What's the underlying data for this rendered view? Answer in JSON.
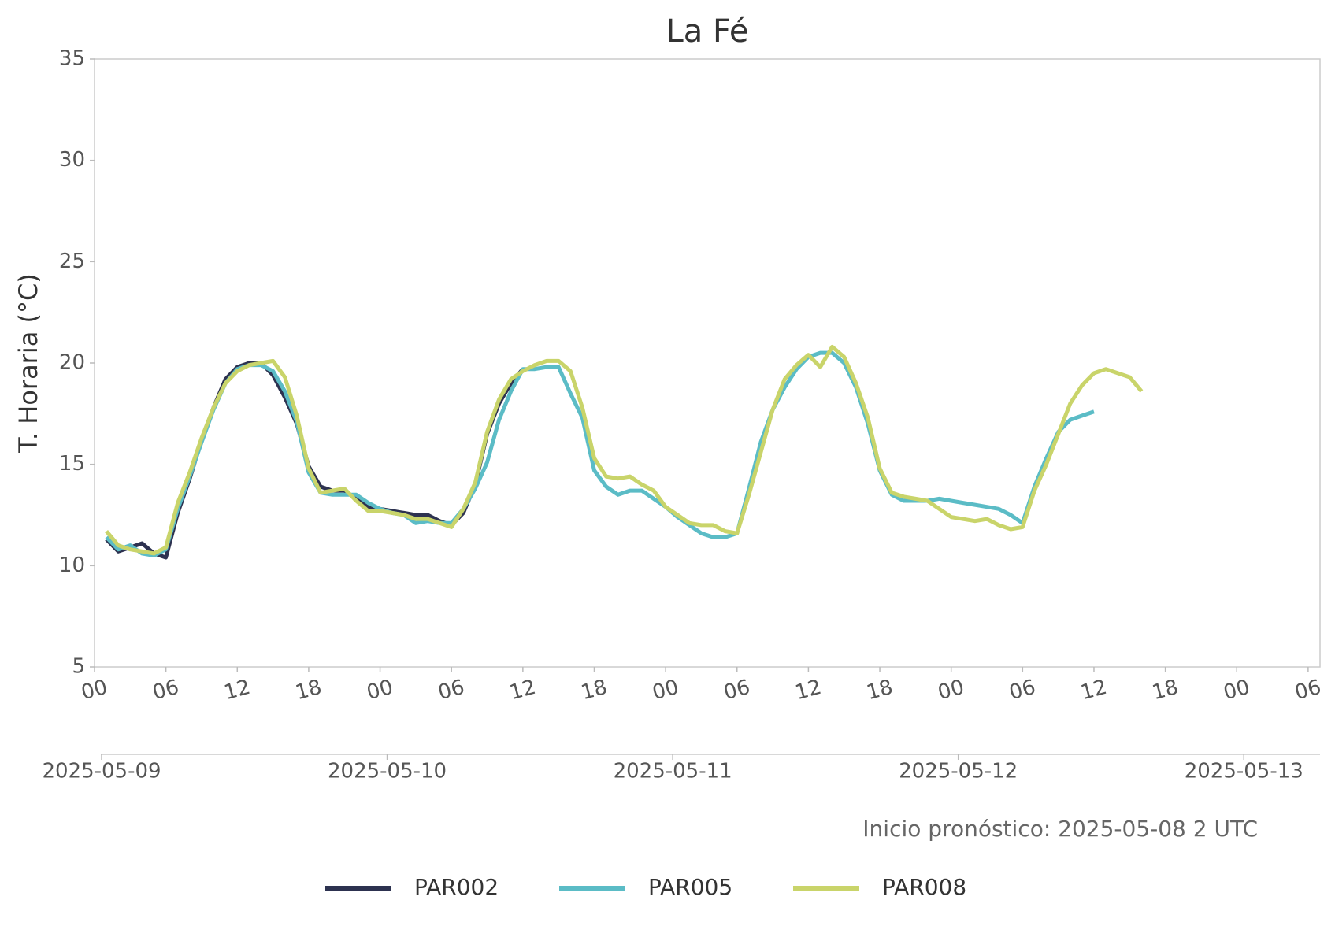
{
  "chart_data": {
    "type": "line",
    "title": "La Fé",
    "y_label": "T. Horaria (°C)",
    "annotation": "Inicio pronóstico: 2025-05-08 2 UTC",
    "x": [
      "2025-05-09T01:00",
      "2025-05-09T02:00",
      "2025-05-09T03:00",
      "2025-05-09T04:00",
      "2025-05-09T05:00",
      "2025-05-09T06:00",
      "2025-05-09T07:00",
      "2025-05-09T08:00",
      "2025-05-09T09:00",
      "2025-05-09T10:00",
      "2025-05-09T11:00",
      "2025-05-09T12:00",
      "2025-05-09T13:00",
      "2025-05-09T14:00",
      "2025-05-09T15:00",
      "2025-05-09T16:00",
      "2025-05-09T17:00",
      "2025-05-09T18:00",
      "2025-05-09T19:00",
      "2025-05-09T20:00",
      "2025-05-09T21:00",
      "2025-05-09T22:00",
      "2025-05-09T23:00",
      "2025-05-10T00:00",
      "2025-05-10T01:00",
      "2025-05-10T02:00",
      "2025-05-10T03:00",
      "2025-05-10T04:00",
      "2025-05-10T05:00",
      "2025-05-10T06:00",
      "2025-05-10T07:00",
      "2025-05-10T08:00",
      "2025-05-10T09:00",
      "2025-05-10T10:00",
      "2025-05-10T11:00",
      "2025-05-10T12:00",
      "2025-05-10T13:00",
      "2025-05-10T14:00",
      "2025-05-10T15:00",
      "2025-05-10T16:00",
      "2025-05-10T17:00",
      "2025-05-10T18:00",
      "2025-05-10T19:00",
      "2025-05-10T20:00",
      "2025-05-10T21:00",
      "2025-05-10T22:00",
      "2025-05-10T23:00",
      "2025-05-11T00:00",
      "2025-05-11T01:00",
      "2025-05-11T02:00",
      "2025-05-11T03:00",
      "2025-05-11T04:00",
      "2025-05-11T05:00",
      "2025-05-11T06:00",
      "2025-05-11T07:00",
      "2025-05-11T08:00",
      "2025-05-11T09:00",
      "2025-05-11T10:00",
      "2025-05-11T11:00",
      "2025-05-11T12:00",
      "2025-05-11T13:00",
      "2025-05-11T14:00",
      "2025-05-11T15:00",
      "2025-05-11T16:00",
      "2025-05-11T17:00",
      "2025-05-11T18:00",
      "2025-05-11T19:00",
      "2025-05-11T20:00",
      "2025-05-11T21:00",
      "2025-05-11T22:00",
      "2025-05-11T23:00",
      "2025-05-12T00:00",
      "2025-05-12T01:00",
      "2025-05-12T02:00",
      "2025-05-12T03:00",
      "2025-05-12T04:00",
      "2025-05-12T05:00",
      "2025-05-12T06:00",
      "2025-05-12T07:00",
      "2025-05-12T08:00",
      "2025-05-12T09:00",
      "2025-05-12T10:00",
      "2025-05-12T11:00",
      "2025-05-12T12:00",
      "2025-05-12T13:00",
      "2025-05-12T14:00",
      "2025-05-12T15:00",
      "2025-05-12T16:00"
    ],
    "series": [
      {
        "name": "PAR002",
        "color": "#2d3250",
        "values": [
          11.3,
          10.7,
          10.9,
          11.1,
          10.6,
          10.4,
          12.6,
          14.3,
          16.2,
          17.8,
          19.2,
          19.8,
          20.0,
          20.0,
          19.4,
          18.3,
          17.0,
          14.9,
          13.9,
          13.7,
          13.7,
          13.3,
          12.9,
          12.8,
          12.7,
          12.6,
          12.5,
          12.5,
          12.2,
          12.0,
          12.6,
          14.0,
          16.5,
          18.0,
          19.0,
          19.7,
          null,
          null,
          null,
          null,
          null,
          null,
          null,
          null,
          null,
          null,
          null,
          null,
          null,
          null,
          null,
          null,
          null,
          null,
          null,
          null,
          null,
          null,
          null,
          null,
          null,
          null,
          null,
          null,
          null,
          null,
          null,
          null,
          null,
          null,
          null,
          null,
          null,
          null,
          null,
          null,
          null,
          null,
          null,
          null,
          null,
          null,
          null,
          null,
          null,
          null,
          null,
          null
        ]
      },
      {
        "name": "PAR005",
        "color": "#5bbcc6",
        "values": [
          11.4,
          10.8,
          11.0,
          10.6,
          10.5,
          10.8,
          12.8,
          14.4,
          16.1,
          17.7,
          19.0,
          19.7,
          19.9,
          19.9,
          19.6,
          18.6,
          17.1,
          14.6,
          13.6,
          13.5,
          13.5,
          13.5,
          13.1,
          12.8,
          12.6,
          12.5,
          12.1,
          12.2,
          12.1,
          12.1,
          12.8,
          13.8,
          15.1,
          17.2,
          18.6,
          19.7,
          19.7,
          19.8,
          19.8,
          18.5,
          17.3,
          14.7,
          13.9,
          13.5,
          13.7,
          13.7,
          13.3,
          12.9,
          12.4,
          12.0,
          11.6,
          11.4,
          11.4,
          11.6,
          13.8,
          16.1,
          17.7,
          18.8,
          19.7,
          20.3,
          20.5,
          20.5,
          20.0,
          18.8,
          17.0,
          14.7,
          13.5,
          13.2,
          13.2,
          13.2,
          13.3,
          13.2,
          13.1,
          13.0,
          12.9,
          12.8,
          12.5,
          12.1,
          13.9,
          15.3,
          16.6,
          17.2,
          17.4,
          17.6,
          null,
          null,
          null,
          null
        ]
      },
      {
        "name": "PAR008",
        "color": "#c9d46a",
        "values": [
          11.7,
          11.0,
          10.8,
          10.7,
          10.6,
          10.9,
          13.1,
          14.6,
          16.3,
          17.8,
          19.0,
          19.6,
          19.9,
          20.0,
          20.1,
          19.3,
          17.4,
          14.8,
          13.6,
          13.7,
          13.8,
          13.2,
          12.7,
          12.7,
          12.6,
          12.5,
          12.3,
          12.3,
          12.1,
          11.9,
          12.8,
          14.1,
          16.6,
          18.2,
          19.2,
          19.6,
          19.9,
          20.1,
          20.1,
          19.6,
          17.8,
          15.3,
          14.4,
          14.3,
          14.4,
          14.0,
          13.7,
          12.9,
          12.5,
          12.1,
          12.0,
          12.0,
          11.7,
          11.6,
          13.5,
          15.6,
          17.7,
          19.2,
          19.9,
          20.4,
          19.8,
          20.8,
          20.3,
          19.0,
          17.3,
          14.8,
          13.6,
          13.4,
          13.3,
          13.2,
          12.8,
          12.4,
          12.3,
          12.2,
          12.3,
          12.0,
          11.8,
          11.9,
          13.7,
          15.0,
          16.5,
          18.0,
          18.9,
          19.5,
          19.7,
          19.5,
          19.3,
          18.6
        ]
      }
    ],
    "xlim": [
      "2025-05-09T00:00",
      "2025-05-13T07:00"
    ],
    "xticks": [
      {
        "value": "2025-05-09T00:00",
        "label": "00"
      },
      {
        "value": "2025-05-09T06:00",
        "label": "06"
      },
      {
        "value": "2025-05-09T12:00",
        "label": "12"
      },
      {
        "value": "2025-05-09T18:00",
        "label": "18"
      },
      {
        "value": "2025-05-10T00:00",
        "label": "00"
      },
      {
        "value": "2025-05-10T06:00",
        "label": "06"
      },
      {
        "value": "2025-05-10T12:00",
        "label": "12"
      },
      {
        "value": "2025-05-10T18:00",
        "label": "18"
      },
      {
        "value": "2025-05-11T00:00",
        "label": "00"
      },
      {
        "value": "2025-05-11T06:00",
        "label": "06"
      },
      {
        "value": "2025-05-11T12:00",
        "label": "12"
      },
      {
        "value": "2025-05-11T18:00",
        "label": "18"
      },
      {
        "value": "2025-05-12T00:00",
        "label": "00"
      },
      {
        "value": "2025-05-12T06:00",
        "label": "06"
      },
      {
        "value": "2025-05-12T12:00",
        "label": "12"
      },
      {
        "value": "2025-05-12T18:00",
        "label": "18"
      },
      {
        "value": "2025-05-13T00:00",
        "label": "00"
      },
      {
        "value": "2025-05-13T06:00",
        "label": "06"
      }
    ],
    "date_ticks": [
      {
        "value": "2025-05-09T00:00",
        "label": "2025-05-09"
      },
      {
        "value": "2025-05-10T00:00",
        "label": "2025-05-10"
      },
      {
        "value": "2025-05-11T00:00",
        "label": "2025-05-11"
      },
      {
        "value": "2025-05-12T00:00",
        "label": "2025-05-12"
      },
      {
        "value": "2025-05-13T00:00",
        "label": "2025-05-13"
      }
    ],
    "ylim": [
      5,
      35
    ],
    "yticks": [
      5,
      10,
      15,
      20,
      25,
      30,
      35
    ],
    "grid": false,
    "legend": "bottom"
  }
}
